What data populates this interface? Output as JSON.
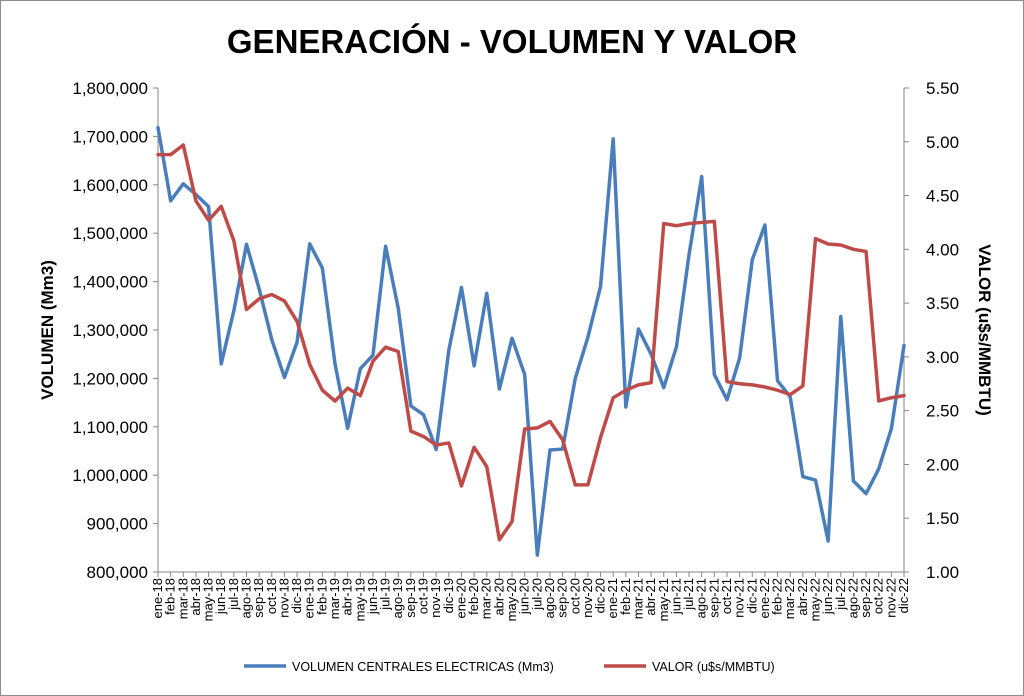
{
  "chart_data": {
    "type": "line",
    "title": "GENERACIÓN - VOLUMEN Y VALOR",
    "ylabel": "VOLUMEN (Mm3)",
    "y2label": "VALOR (u$s/MMBTU)",
    "ylim": [
      800000,
      1800000
    ],
    "y2lim": [
      1.0,
      5.5
    ],
    "yticks": [
      "800,000",
      "900,000",
      "1,000,000",
      "1,100,000",
      "1,200,000",
      "1,300,000",
      "1,400,000",
      "1,500,000",
      "1,600,000",
      "1,700,000",
      "1,800,000"
    ],
    "y2ticks": [
      "1.00",
      "1.50",
      "2.00",
      "2.50",
      "3.00",
      "3.50",
      "4.00",
      "4.50",
      "5.00",
      "5.50"
    ],
    "grid": false,
    "legend_position": "bottom",
    "categories": [
      "ene-18",
      "feb-18",
      "mar-18",
      "abr-18",
      "may-18",
      "jun-18",
      "jul-18",
      "ago-18",
      "sep-18",
      "oct-18",
      "nov-18",
      "dic-18",
      "ene-19",
      "feb-19",
      "mar-19",
      "abr-19",
      "may-19",
      "jun-19",
      "jul-19",
      "ago-19",
      "sep-19",
      "oct-19",
      "nov-19",
      "dic-19",
      "ene-20",
      "feb-20",
      "mar-20",
      "abr-20",
      "may-20",
      "jun-20",
      "jul-20",
      "ago-20",
      "sep-20",
      "oct-20",
      "nov-20",
      "dic-20",
      "ene-21",
      "feb-21",
      "mar-21",
      "abr-21",
      "may-21",
      "jun-21",
      "jul-21",
      "ago-21",
      "sep-21",
      "oct-21",
      "nov-21",
      "dic-21",
      "ene-22",
      "feb-22",
      "mar-22",
      "abr-22",
      "may-22",
      "jun-22",
      "jul-22",
      "ago-22",
      "sep-22",
      "oct-22",
      "nov-22",
      "dic-22"
    ],
    "series": [
      {
        "name": "VOLUMEN CENTRALES ELECTRICAS (Mm3)",
        "axis": "left",
        "color": "#4a7ebb",
        "values": [
          1718000,
          1567000,
          1602000,
          1580000,
          1555000,
          1230000,
          1340000,
          1477000,
          1385000,
          1280000,
          1202000,
          1275000,
          1478000,
          1428000,
          1230000,
          1097000,
          1220000,
          1248000,
          1473000,
          1345000,
          1143000,
          1125000,
          1053000,
          1258000,
          1388000,
          1226000,
          1376000,
          1178000,
          1283000,
          1208000,
          835000,
          1052000,
          1054000,
          1200000,
          1285000,
          1390000,
          1695000,
          1141000,
          1302000,
          1250000,
          1181000,
          1265000,
          1456000,
          1617000,
          1208000,
          1156000,
          1242000,
          1445000,
          1517000,
          1195000,
          1162000,
          997000,
          990000,
          864000,
          1328000,
          988000,
          962000,
          1013000,
          1096000,
          1268000
        ]
      },
      {
        "name": "VALOR (u$s/MMBTU)",
        "axis": "right",
        "color": "#be4b48",
        "values": [
          4.88,
          4.88,
          4.97,
          4.45,
          4.27,
          4.4,
          4.08,
          3.44,
          3.54,
          3.58,
          3.52,
          3.33,
          2.93,
          2.69,
          2.59,
          2.71,
          2.64,
          2.96,
          3.09,
          3.05,
          2.31,
          2.26,
          2.18,
          2.2,
          1.8,
          2.16,
          1.98,
          1.3,
          1.47,
          2.33,
          2.34,
          2.4,
          2.23,
          1.81,
          1.81,
          2.25,
          2.62,
          2.69,
          2.74,
          2.76,
          4.24,
          4.22,
          4.24,
          4.25,
          4.26,
          2.77,
          2.75,
          2.74,
          2.72,
          2.69,
          2.65,
          2.73,
          4.1,
          4.05,
          4.04,
          4.0,
          3.98,
          2.59,
          2.62,
          2.64
        ]
      }
    ]
  }
}
